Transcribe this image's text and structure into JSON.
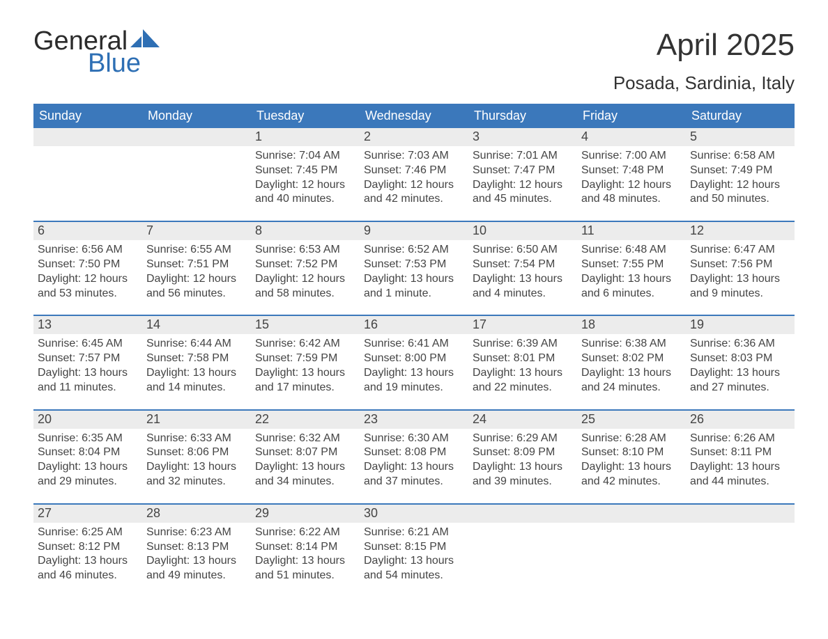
{
  "logo": {
    "text_general": "General",
    "text_blue": "Blue",
    "shape_color": "#2e6fb4"
  },
  "title": "April 2025",
  "location": "Posada, Sardinia, Italy",
  "header_bg": "#3b78bb",
  "header_text_color": "#ffffff",
  "daynum_bg": "#ececec",
  "week_border_color": "#3b78bb",
  "text_color": "#444444",
  "weekdays": [
    "Sunday",
    "Monday",
    "Tuesday",
    "Wednesday",
    "Thursday",
    "Friday",
    "Saturday"
  ],
  "weeks": [
    [
      {
        "d": "",
        "sunrise": "",
        "sunset": "",
        "daylight1": "",
        "daylight2": ""
      },
      {
        "d": "",
        "sunrise": "",
        "sunset": "",
        "daylight1": "",
        "daylight2": ""
      },
      {
        "d": "1",
        "sunrise": "Sunrise: 7:04 AM",
        "sunset": "Sunset: 7:45 PM",
        "daylight1": "Daylight: 12 hours",
        "daylight2": "and 40 minutes."
      },
      {
        "d": "2",
        "sunrise": "Sunrise: 7:03 AM",
        "sunset": "Sunset: 7:46 PM",
        "daylight1": "Daylight: 12 hours",
        "daylight2": "and 42 minutes."
      },
      {
        "d": "3",
        "sunrise": "Sunrise: 7:01 AM",
        "sunset": "Sunset: 7:47 PM",
        "daylight1": "Daylight: 12 hours",
        "daylight2": "and 45 minutes."
      },
      {
        "d": "4",
        "sunrise": "Sunrise: 7:00 AM",
        "sunset": "Sunset: 7:48 PM",
        "daylight1": "Daylight: 12 hours",
        "daylight2": "and 48 minutes."
      },
      {
        "d": "5",
        "sunrise": "Sunrise: 6:58 AM",
        "sunset": "Sunset: 7:49 PM",
        "daylight1": "Daylight: 12 hours",
        "daylight2": "and 50 minutes."
      }
    ],
    [
      {
        "d": "6",
        "sunrise": "Sunrise: 6:56 AM",
        "sunset": "Sunset: 7:50 PM",
        "daylight1": "Daylight: 12 hours",
        "daylight2": "and 53 minutes."
      },
      {
        "d": "7",
        "sunrise": "Sunrise: 6:55 AM",
        "sunset": "Sunset: 7:51 PM",
        "daylight1": "Daylight: 12 hours",
        "daylight2": "and 56 minutes."
      },
      {
        "d": "8",
        "sunrise": "Sunrise: 6:53 AM",
        "sunset": "Sunset: 7:52 PM",
        "daylight1": "Daylight: 12 hours",
        "daylight2": "and 58 minutes."
      },
      {
        "d": "9",
        "sunrise": "Sunrise: 6:52 AM",
        "sunset": "Sunset: 7:53 PM",
        "daylight1": "Daylight: 13 hours",
        "daylight2": "and 1 minute."
      },
      {
        "d": "10",
        "sunrise": "Sunrise: 6:50 AM",
        "sunset": "Sunset: 7:54 PM",
        "daylight1": "Daylight: 13 hours",
        "daylight2": "and 4 minutes."
      },
      {
        "d": "11",
        "sunrise": "Sunrise: 6:48 AM",
        "sunset": "Sunset: 7:55 PM",
        "daylight1": "Daylight: 13 hours",
        "daylight2": "and 6 minutes."
      },
      {
        "d": "12",
        "sunrise": "Sunrise: 6:47 AM",
        "sunset": "Sunset: 7:56 PM",
        "daylight1": "Daylight: 13 hours",
        "daylight2": "and 9 minutes."
      }
    ],
    [
      {
        "d": "13",
        "sunrise": "Sunrise: 6:45 AM",
        "sunset": "Sunset: 7:57 PM",
        "daylight1": "Daylight: 13 hours",
        "daylight2": "and 11 minutes."
      },
      {
        "d": "14",
        "sunrise": "Sunrise: 6:44 AM",
        "sunset": "Sunset: 7:58 PM",
        "daylight1": "Daylight: 13 hours",
        "daylight2": "and 14 minutes."
      },
      {
        "d": "15",
        "sunrise": "Sunrise: 6:42 AM",
        "sunset": "Sunset: 7:59 PM",
        "daylight1": "Daylight: 13 hours",
        "daylight2": "and 17 minutes."
      },
      {
        "d": "16",
        "sunrise": "Sunrise: 6:41 AM",
        "sunset": "Sunset: 8:00 PM",
        "daylight1": "Daylight: 13 hours",
        "daylight2": "and 19 minutes."
      },
      {
        "d": "17",
        "sunrise": "Sunrise: 6:39 AM",
        "sunset": "Sunset: 8:01 PM",
        "daylight1": "Daylight: 13 hours",
        "daylight2": "and 22 minutes."
      },
      {
        "d": "18",
        "sunrise": "Sunrise: 6:38 AM",
        "sunset": "Sunset: 8:02 PM",
        "daylight1": "Daylight: 13 hours",
        "daylight2": "and 24 minutes."
      },
      {
        "d": "19",
        "sunrise": "Sunrise: 6:36 AM",
        "sunset": "Sunset: 8:03 PM",
        "daylight1": "Daylight: 13 hours",
        "daylight2": "and 27 minutes."
      }
    ],
    [
      {
        "d": "20",
        "sunrise": "Sunrise: 6:35 AM",
        "sunset": "Sunset: 8:04 PM",
        "daylight1": "Daylight: 13 hours",
        "daylight2": "and 29 minutes."
      },
      {
        "d": "21",
        "sunrise": "Sunrise: 6:33 AM",
        "sunset": "Sunset: 8:06 PM",
        "daylight1": "Daylight: 13 hours",
        "daylight2": "and 32 minutes."
      },
      {
        "d": "22",
        "sunrise": "Sunrise: 6:32 AM",
        "sunset": "Sunset: 8:07 PM",
        "daylight1": "Daylight: 13 hours",
        "daylight2": "and 34 minutes."
      },
      {
        "d": "23",
        "sunrise": "Sunrise: 6:30 AM",
        "sunset": "Sunset: 8:08 PM",
        "daylight1": "Daylight: 13 hours",
        "daylight2": "and 37 minutes."
      },
      {
        "d": "24",
        "sunrise": "Sunrise: 6:29 AM",
        "sunset": "Sunset: 8:09 PM",
        "daylight1": "Daylight: 13 hours",
        "daylight2": "and 39 minutes."
      },
      {
        "d": "25",
        "sunrise": "Sunrise: 6:28 AM",
        "sunset": "Sunset: 8:10 PM",
        "daylight1": "Daylight: 13 hours",
        "daylight2": "and 42 minutes."
      },
      {
        "d": "26",
        "sunrise": "Sunrise: 6:26 AM",
        "sunset": "Sunset: 8:11 PM",
        "daylight1": "Daylight: 13 hours",
        "daylight2": "and 44 minutes."
      }
    ],
    [
      {
        "d": "27",
        "sunrise": "Sunrise: 6:25 AM",
        "sunset": "Sunset: 8:12 PM",
        "daylight1": "Daylight: 13 hours",
        "daylight2": "and 46 minutes."
      },
      {
        "d": "28",
        "sunrise": "Sunrise: 6:23 AM",
        "sunset": "Sunset: 8:13 PM",
        "daylight1": "Daylight: 13 hours",
        "daylight2": "and 49 minutes."
      },
      {
        "d": "29",
        "sunrise": "Sunrise: 6:22 AM",
        "sunset": "Sunset: 8:14 PM",
        "daylight1": "Daylight: 13 hours",
        "daylight2": "and 51 minutes."
      },
      {
        "d": "30",
        "sunrise": "Sunrise: 6:21 AM",
        "sunset": "Sunset: 8:15 PM",
        "daylight1": "Daylight: 13 hours",
        "daylight2": "and 54 minutes."
      },
      {
        "d": "",
        "sunrise": "",
        "sunset": "",
        "daylight1": "",
        "daylight2": ""
      },
      {
        "d": "",
        "sunrise": "",
        "sunset": "",
        "daylight1": "",
        "daylight2": ""
      },
      {
        "d": "",
        "sunrise": "",
        "sunset": "",
        "daylight1": "",
        "daylight2": ""
      }
    ]
  ]
}
